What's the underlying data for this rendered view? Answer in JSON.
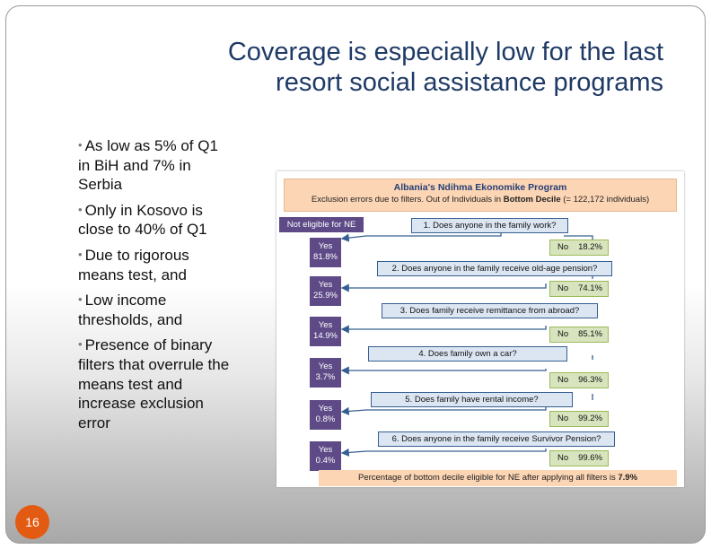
{
  "slide": {
    "title_line1": "Coverage is especially low for the last",
    "title_line2": "resort social assistance programs",
    "bullets": [
      "As low as 5% of Q1 in BiH and 7% in Serbia",
      "Only in Kosovo is close to 40% of Q1",
      "Due to rigorous means test, and",
      "Low income thresholds, and",
      "Presence of binary filters that overrule the means test and increase exclusion error"
    ],
    "page_number": "16"
  },
  "figure": {
    "heading": "Albania's Ndihma Ekonomike Program",
    "subheading_pre": "Exclusion errors due to filters. Out of Individuals in ",
    "subheading_bold": "Bottom Decile",
    "subheading_post": " (= 122,172 individuals)",
    "not_eligible": "Not eligible for NE",
    "questions": [
      "1. Does anyone in the family work?",
      "2. Does anyone in the family receive old-age pension?",
      "3. Does family receive remittance from abroad?",
      "4. Does family own a car?",
      "5. Does family have rental income?",
      "6. Does anyone in the family receive Survivor Pension?"
    ],
    "yes_label": "Yes",
    "yes_values": [
      "81.8%",
      "25.9%",
      "14.9%",
      "3.7%",
      "0.8%",
      "0.4%"
    ],
    "no_label": "No",
    "no_values": [
      "18.2%",
      "74.1%",
      "85.1%",
      "96.3%",
      "99.2%",
      "99.6%"
    ],
    "footer_pre": "Percentage of bottom decile eligible for NE after applying all filters is ",
    "footer_bold": "7.9%",
    "colors": {
      "header_bg": "#fcd5b4",
      "yes_box": "#5d4a86",
      "no_box": "#d7e4bd",
      "question_box": "#dce6f2"
    }
  }
}
